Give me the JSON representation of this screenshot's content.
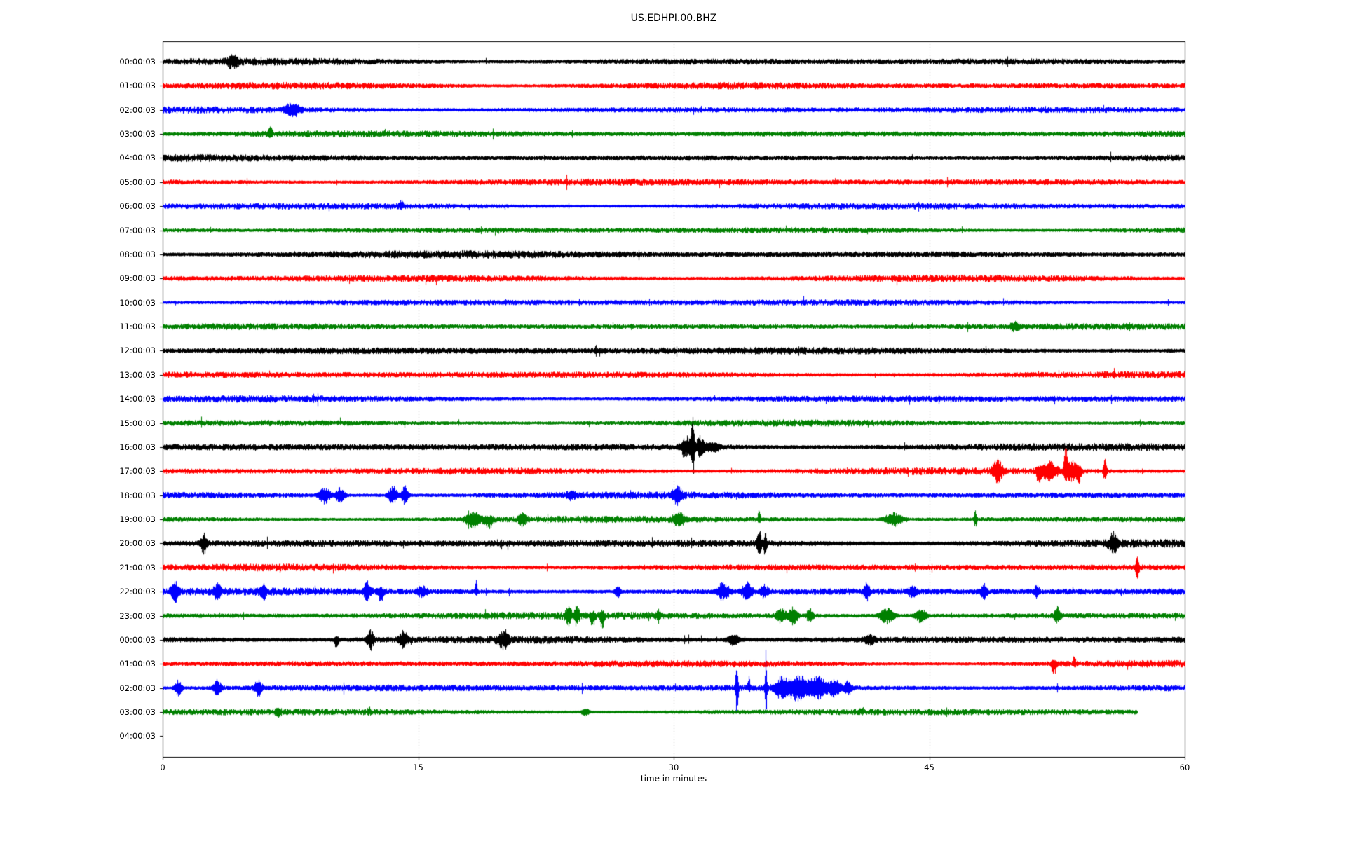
{
  "chart_data": {
    "type": "line",
    "variant": "seismic-helicorder-dayplot",
    "title": "US.EDHPI.00.BHZ",
    "xlabel": "time in minutes",
    "x_range": [
      0,
      60
    ],
    "x_ticks": [
      0,
      15,
      30,
      45,
      60
    ],
    "gridlines_x": [
      15,
      30,
      45
    ],
    "grid_on": true,
    "grid_color": "#9a9a9a",
    "axis_color": "#000000",
    "plot_bg": "#ffffff",
    "trace_colors_cycle": [
      "#000000",
      "#ff0000",
      "#0000ff",
      "#008000"
    ],
    "y_tick_labels": [
      "00:00:03",
      "01:00:03",
      "02:00:03",
      "03:00:03",
      "04:00:03",
      "05:00:03",
      "06:00:03",
      "07:00:03",
      "08:00:03",
      "09:00:03",
      "10:00:03",
      "11:00:03",
      "12:00:03",
      "13:00:03",
      "14:00:03",
      "15:00:03",
      "16:00:03",
      "17:00:03",
      "18:00:03",
      "19:00:03",
      "20:00:03",
      "21:00:03",
      "22:00:03",
      "23:00:03",
      "00:00:03",
      "01:00:03",
      "02:00:03",
      "03:00:03",
      "04:00:03"
    ],
    "traces": [
      {
        "label": "00:00:03",
        "color": "#000000",
        "start": 0,
        "end": 60,
        "n": 4.5,
        "events": [
          {
            "t": 4.1,
            "a": 6,
            "s": 0.25,
            "d": 0
          }
        ]
      },
      {
        "label": "01:00:03",
        "color": "#ff0000",
        "start": 0,
        "end": 60,
        "n": 4.5,
        "events": []
      },
      {
        "label": "02:00:03",
        "color": "#0000ff",
        "start": 0,
        "end": 60,
        "n": 4.2,
        "events": [
          {
            "t": 7.6,
            "a": 7,
            "s": 0.3,
            "d": 0
          }
        ]
      },
      {
        "label": "03:00:03",
        "color": "#008000",
        "start": 0,
        "end": 60,
        "n": 4.2,
        "events": [
          {
            "t": 6.3,
            "a": 9,
            "s": 0.08,
            "d": 1
          }
        ]
      },
      {
        "label": "04:00:03",
        "color": "#000000",
        "start": 0,
        "end": 60,
        "n": 4.5,
        "events": []
      },
      {
        "label": "05:00:03",
        "color": "#ff0000",
        "start": 0,
        "end": 60,
        "n": 4.5,
        "events": []
      },
      {
        "label": "06:00:03",
        "color": "#0000ff",
        "start": 0,
        "end": 60,
        "n": 4.2,
        "events": [
          {
            "t": 14.0,
            "a": 7,
            "s": 0.08,
            "d": 1
          }
        ]
      },
      {
        "label": "07:00:03",
        "color": "#008000",
        "start": 0,
        "end": 60,
        "n": 4.0,
        "events": []
      },
      {
        "label": "08:00:03",
        "color": "#000000",
        "start": 0,
        "end": 60,
        "n": 5.0,
        "events": []
      },
      {
        "label": "09:00:03",
        "color": "#ff0000",
        "start": 0,
        "end": 60,
        "n": 4.5,
        "events": []
      },
      {
        "label": "10:00:03",
        "color": "#0000ff",
        "start": 0,
        "end": 60,
        "n": 4.2,
        "events": []
      },
      {
        "label": "11:00:03",
        "color": "#008000",
        "start": 0,
        "end": 60,
        "n": 4.2,
        "events": [
          {
            "t": 50.0,
            "a": 4,
            "s": 0.2,
            "d": 0
          }
        ]
      },
      {
        "label": "12:00:03",
        "color": "#000000",
        "start": 0,
        "end": 60,
        "n": 5.0,
        "events": []
      },
      {
        "label": "13:00:03",
        "color": "#ff0000",
        "start": 0,
        "end": 60,
        "n": 4.5,
        "events": []
      },
      {
        "label": "14:00:03",
        "color": "#0000ff",
        "start": 0,
        "end": 60,
        "n": 4.5,
        "events": []
      },
      {
        "label": "15:00:03",
        "color": "#008000",
        "start": 0,
        "end": 60,
        "n": 4.2,
        "events": []
      },
      {
        "label": "16:00:03",
        "color": "#000000",
        "start": 0,
        "end": 60,
        "n": 4.8,
        "events": [
          {
            "t": 30.7,
            "a": 11,
            "s": 0.22,
            "d": 0
          },
          {
            "t": 31.1,
            "a": 34,
            "s": 0.07,
            "d": 0
          },
          {
            "t": 31.55,
            "a": 11,
            "s": 0.18,
            "d": 0
          },
          {
            "t": 32.3,
            "a": 4,
            "s": 0.3,
            "d": 0
          }
        ]
      },
      {
        "label": "17:00:03",
        "color": "#ff0000",
        "start": 0,
        "end": 60,
        "n": 4.5,
        "events": [
          {
            "t": 49.0,
            "a": 15,
            "s": 0.18,
            "d": 0
          },
          {
            "t": 51.4,
            "a": 12,
            "s": 0.1,
            "d": -1
          },
          {
            "t": 52.0,
            "a": 9,
            "s": 0.35,
            "d": 0
          },
          {
            "t": 53.0,
            "a": 28,
            "s": 0.07,
            "d": 1
          },
          {
            "t": 53.35,
            "a": 11,
            "s": 0.25,
            "d": 0
          },
          {
            "t": 53.8,
            "a": 13,
            "s": 0.1,
            "d": -1
          },
          {
            "t": 55.3,
            "a": 12,
            "s": 0.07,
            "d": 0
          }
        ]
      },
      {
        "label": "18:00:03",
        "color": "#0000ff",
        "start": 0,
        "end": 60,
        "n": 4.5,
        "events": [
          {
            "t": 9.5,
            "a": 9,
            "s": 0.22,
            "d": 0
          },
          {
            "t": 10.4,
            "a": 8,
            "s": 0.18,
            "d": 0
          },
          {
            "t": 13.5,
            "a": 10,
            "s": 0.18,
            "d": 0
          },
          {
            "t": 14.2,
            "a": 10,
            "s": 0.14,
            "d": 0
          },
          {
            "t": 24.0,
            "a": 4,
            "s": 0.2,
            "d": 0
          },
          {
            "t": 30.2,
            "a": 8,
            "s": 0.18,
            "d": 0
          }
        ]
      },
      {
        "label": "19:00:03",
        "color": "#008000",
        "start": 0,
        "end": 60,
        "n": 4.2,
        "events": [
          {
            "t": 18.2,
            "a": 8,
            "s": 0.3,
            "d": 0
          },
          {
            "t": 19.1,
            "a": 9,
            "s": 0.2,
            "d": -1
          },
          {
            "t": 21.1,
            "a": 7,
            "s": 0.15,
            "d": 0
          },
          {
            "t": 30.3,
            "a": 6,
            "s": 0.25,
            "d": 0
          },
          {
            "t": 35.0,
            "a": 11,
            "s": 0.06,
            "d": 1
          },
          {
            "t": 42.9,
            "a": 7,
            "s": 0.35,
            "d": 0
          },
          {
            "t": 47.7,
            "a": 10,
            "s": 0.06,
            "d": 0
          }
        ]
      },
      {
        "label": "20:00:03",
        "color": "#000000",
        "start": 0,
        "end": 60,
        "n": 5.0,
        "events": [
          {
            "t": 2.4,
            "a": 12,
            "s": 0.12,
            "d": 0
          },
          {
            "t": 35.0,
            "a": 15,
            "s": 0.09,
            "d": 0
          },
          {
            "t": 35.35,
            "a": 11,
            "s": 0.07,
            "d": 0
          },
          {
            "t": 55.8,
            "a": 11,
            "s": 0.18,
            "d": 0
          }
        ]
      },
      {
        "label": "21:00:03",
        "color": "#ff0000",
        "start": 0,
        "end": 60,
        "n": 4.5,
        "events": [
          {
            "t": 57.2,
            "a": 12,
            "s": 0.07,
            "d": 0
          }
        ]
      },
      {
        "label": "22:00:03",
        "color": "#0000ff",
        "start": 0,
        "end": 60,
        "n": 4.8,
        "events": [
          {
            "t": 0.7,
            "a": 10,
            "s": 0.15,
            "d": 0
          },
          {
            "t": 3.2,
            "a": 7,
            "s": 0.15,
            "d": 0
          },
          {
            "t": 5.9,
            "a": 7,
            "s": 0.12,
            "d": 0
          },
          {
            "t": 12.0,
            "a": 10,
            "s": 0.14,
            "d": 0
          },
          {
            "t": 12.8,
            "a": 10,
            "s": 0.12,
            "d": -1
          },
          {
            "t": 15.2,
            "a": 5,
            "s": 0.2,
            "d": 0
          },
          {
            "t": 18.4,
            "a": 12,
            "s": 0.05,
            "d": 1
          },
          {
            "t": 26.7,
            "a": 7,
            "s": 0.1,
            "d": 0
          },
          {
            "t": 32.9,
            "a": 9,
            "s": 0.25,
            "d": 0
          },
          {
            "t": 34.3,
            "a": 9,
            "s": 0.2,
            "d": 0
          },
          {
            "t": 35.3,
            "a": 7,
            "s": 0.15,
            "d": 0
          },
          {
            "t": 41.3,
            "a": 9,
            "s": 0.12,
            "d": 0
          },
          {
            "t": 44.0,
            "a": 5,
            "s": 0.2,
            "d": 0
          },
          {
            "t": 48.2,
            "a": 8,
            "s": 0.12,
            "d": 0
          },
          {
            "t": 51.3,
            "a": 7,
            "s": 0.1,
            "d": 0
          }
        ]
      },
      {
        "label": "23:00:03",
        "color": "#008000",
        "start": 0,
        "end": 60,
        "n": 4.5,
        "events": [
          {
            "t": 23.8,
            "a": 10,
            "s": 0.12,
            "d": 0
          },
          {
            "t": 24.3,
            "a": 10,
            "s": 0.1,
            "d": 0
          },
          {
            "t": 25.2,
            "a": 10,
            "s": 0.12,
            "d": -1
          },
          {
            "t": 25.8,
            "a": 14,
            "s": 0.08,
            "d": -1
          },
          {
            "t": 29.1,
            "a": 6,
            "s": 0.08,
            "d": 0
          },
          {
            "t": 36.3,
            "a": 8,
            "s": 0.2,
            "d": 0
          },
          {
            "t": 37.0,
            "a": 9,
            "s": 0.18,
            "d": 0
          },
          {
            "t": 38.0,
            "a": 7,
            "s": 0.12,
            "d": 0
          },
          {
            "t": 42.5,
            "a": 8,
            "s": 0.3,
            "d": 0
          },
          {
            "t": 44.5,
            "a": 7,
            "s": 0.22,
            "d": 0
          },
          {
            "t": 52.5,
            "a": 9,
            "s": 0.12,
            "d": 0
          }
        ]
      },
      {
        "label": "00:00:03",
        "color": "#000000",
        "start": 0,
        "end": 60,
        "n": 4.8,
        "events": [
          {
            "t": 10.2,
            "a": 11,
            "s": 0.08,
            "d": -1
          },
          {
            "t": 12.2,
            "a": 12,
            "s": 0.13,
            "d": 0
          },
          {
            "t": 14.1,
            "a": 8,
            "s": 0.18,
            "d": 0
          },
          {
            "t": 20.0,
            "a": 9,
            "s": 0.2,
            "d": 0
          },
          {
            "t": 33.5,
            "a": 5,
            "s": 0.25,
            "d": 0
          },
          {
            "t": 41.5,
            "a": 5,
            "s": 0.2,
            "d": 0
          }
        ]
      },
      {
        "label": "01:00:03",
        "color": "#ff0000",
        "start": 0,
        "end": 60,
        "n": 4.5,
        "events": [
          {
            "t": 52.3,
            "a": 13,
            "s": 0.1,
            "d": -1
          },
          {
            "t": 53.5,
            "a": 11,
            "s": 0.05,
            "d": 1
          }
        ]
      },
      {
        "label": "02:00:03",
        "color": "#0000ff",
        "start": 0,
        "end": 60,
        "n": 4.5,
        "events": [
          {
            "t": 0.9,
            "a": 8,
            "s": 0.15,
            "d": 0
          },
          {
            "t": 3.2,
            "a": 8,
            "s": 0.18,
            "d": 0
          },
          {
            "t": 5.6,
            "a": 8,
            "s": 0.15,
            "d": 0
          },
          {
            "t": 33.7,
            "a": 40,
            "s": 0.05,
            "d": 0
          },
          {
            "t": 34.4,
            "a": 11,
            "s": 0.05,
            "d": 1
          },
          {
            "t": 35.4,
            "a": 42,
            "s": 0.04,
            "d": 0
          },
          {
            "t": 36.3,
            "a": 11,
            "s": 0.3,
            "d": 0
          },
          {
            "t": 37.3,
            "a": 13,
            "s": 0.4,
            "d": 0
          },
          {
            "t": 38.4,
            "a": 12,
            "s": 0.35,
            "d": 0
          },
          {
            "t": 39.4,
            "a": 9,
            "s": 0.25,
            "d": 0
          },
          {
            "t": 40.2,
            "a": 7,
            "s": 0.15,
            "d": 0
          }
        ]
      },
      {
        "label": "03:00:03",
        "color": "#008000",
        "start": 0,
        "end": 57.2,
        "n": 4.2,
        "events": [
          {
            "t": 6.8,
            "a": 4,
            "s": 0.1,
            "d": 0
          },
          {
            "t": 12.1,
            "a": 5,
            "s": 0.08,
            "d": 1
          },
          {
            "t": 24.8,
            "a": 4,
            "s": 0.15,
            "d": 0
          },
          {
            "t": 41.0,
            "a": 4,
            "s": 0.1,
            "d": 1
          }
        ]
      }
    ]
  }
}
